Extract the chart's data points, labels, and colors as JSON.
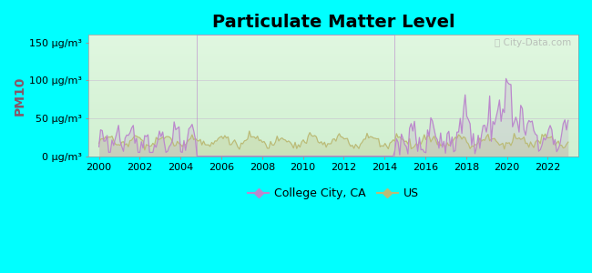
{
  "title": "Particulate Matter Level",
  "ylabel": "PM10",
  "xlabel_ticks": [
    2000,
    2002,
    2004,
    2006,
    2008,
    2010,
    2012,
    2014,
    2016,
    2018,
    2020,
    2022
  ],
  "ytick_labels": [
    "0 μg/m³",
    "50 μg/m³",
    "100 μg/m³",
    "150 μg/m³"
  ],
  "ytick_values": [
    0,
    50,
    100,
    150
  ],
  "ylim": [
    0,
    160
  ],
  "xlim": [
    1999.5,
    2023.5
  ],
  "background_outer": "#00FFFF",
  "college_city_color": "#bb88cc",
  "us_color": "#bbbb77",
  "legend_entries": [
    "College City, CA",
    "US"
  ],
  "watermark_text": "Ⓢ City-Data.com",
  "title_fontsize": 14,
  "ylabel_fontsize": 10,
  "tick_fontsize": 8,
  "legend_fontsize": 9
}
